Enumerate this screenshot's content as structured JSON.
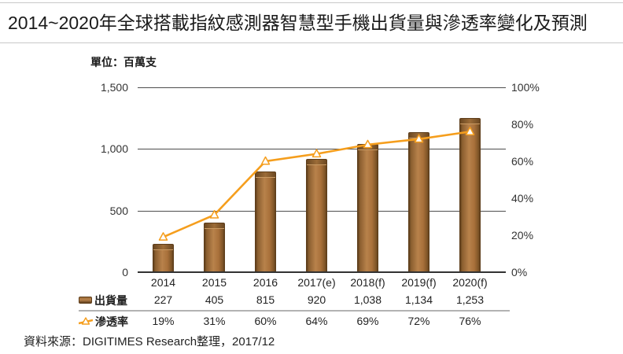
{
  "title": "2014~2020年全球搭載指紋感測器智慧型手機出貨量與滲透率變化及預測",
  "unit_label": "單位：百萬支",
  "source": "資料來源：DIGITIMES Research整理，2017/12",
  "legend": {
    "bars": "出貨量",
    "line": "滲透率"
  },
  "colors": {
    "bar_body": "#A8703A",
    "bar_light": "#B8824B",
    "bar_dark": "#5E3E1B",
    "line": "#F59E1D",
    "grid": "#4D4D4D",
    "axis": "#333333",
    "text": "#333333",
    "border": "#C9C9C9"
  },
  "left_axis": {
    "ticks": [
      {
        "label": "0",
        "value": 0
      },
      {
        "label": "500",
        "value": 500
      },
      {
        "label": "1,000",
        "value": 1000
      },
      {
        "label": "1,500",
        "value": 1500
      }
    ],
    "max": 1500,
    "gridline_values": [
      500,
      1000,
      1500
    ]
  },
  "right_axis": {
    "ticks": [
      {
        "label": "0%",
        "value": 0
      },
      {
        "label": "20%",
        "value": 20
      },
      {
        "label": "40%",
        "value": 40
      },
      {
        "label": "60%",
        "value": 60
      },
      {
        "label": "80%",
        "value": 80
      },
      {
        "label": "100%",
        "value": 100
      }
    ],
    "max": 100
  },
  "chart_data": {
    "type": "bar+line combo",
    "title": "2014~2020年全球搭載指紋感測器智慧型手機出貨量與滲透率變化及預測",
    "unit": "百萬支",
    "categories": [
      "2014",
      "2015",
      "2016",
      "2017(e)",
      "2018(f)",
      "2019(f)",
      "2020(f)"
    ],
    "series": [
      {
        "name": "出貨量",
        "type": "bar",
        "axis": "left",
        "values": [
          227,
          405,
          815,
          920,
          1038,
          1134,
          1253
        ],
        "display": [
          "227",
          "405",
          "815",
          "920",
          "1,038",
          "1,134",
          "1,253"
        ]
      },
      {
        "name": "滲透率",
        "type": "line",
        "axis": "right",
        "values": [
          19,
          31,
          60,
          64,
          69,
          72,
          76
        ],
        "display": [
          "19%",
          "31%",
          "60%",
          "64%",
          "69%",
          "72%",
          "76%"
        ]
      }
    ],
    "left_ylim": [
      0,
      1500
    ],
    "right_ylim": [
      0,
      100
    ],
    "grid": true,
    "legend_position": "bottom-left table"
  }
}
